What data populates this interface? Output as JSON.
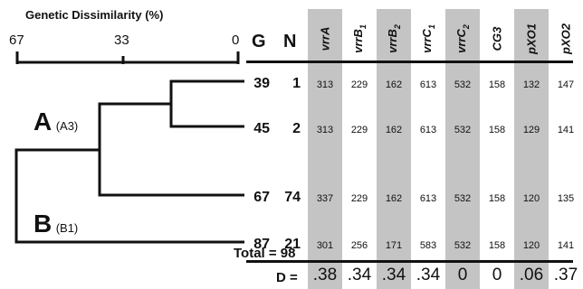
{
  "dendrogram": {
    "title": "Genetic Dissimilarity (%)",
    "scale_labels": [
      "67",
      "33",
      "0"
    ],
    "clades": [
      {
        "letter": "A",
        "sub": "(A3)"
      },
      {
        "letter": "B",
        "sub": "(B1)"
      }
    ]
  },
  "table": {
    "g_header": "G",
    "n_header": "N",
    "markers": [
      {
        "name": "vrrA",
        "base": "vrrA",
        "subscript": "",
        "shaded": true
      },
      {
        "name": "vrrB1",
        "base": "vrrB",
        "subscript": "1",
        "shaded": false
      },
      {
        "name": "vrrB2",
        "base": "vrrB",
        "subscript": "2",
        "shaded": true
      },
      {
        "name": "vrrC1",
        "base": "vrrC",
        "subscript": "1",
        "shaded": false
      },
      {
        "name": "vrrC2",
        "base": "vrrC",
        "subscript": "2",
        "shaded": true
      },
      {
        "name": "CG3",
        "base": "CG3",
        "subscript": "",
        "shaded": false
      },
      {
        "name": "pXO1",
        "base": "pXO1",
        "subscript": "",
        "shaded": true
      },
      {
        "name": "pXO2",
        "base": "pXO2",
        "subscript": "",
        "shaded": false
      }
    ],
    "rows": [
      {
        "g": "39",
        "n": "1",
        "values": [
          "313",
          "229",
          "162",
          "613",
          "532",
          "158",
          "132",
          "147"
        ]
      },
      {
        "g": "45",
        "n": "2",
        "values": [
          "313",
          "229",
          "162",
          "613",
          "532",
          "158",
          "129",
          "141"
        ]
      },
      {
        "g": "67",
        "n": "74",
        "values": [
          "337",
          "229",
          "162",
          "613",
          "532",
          "158",
          "120",
          "135"
        ]
      },
      {
        "g": "87",
        "n": "21",
        "values": [
          "301",
          "256",
          "171",
          "583",
          "532",
          "158",
          "120",
          "141"
        ]
      }
    ],
    "total_label": "Total = 98",
    "d_label": "D =",
    "d_values": [
      ".38",
      ".34",
      ".34",
      ".34",
      "0",
      "0",
      ".06",
      ".37"
    ]
  }
}
